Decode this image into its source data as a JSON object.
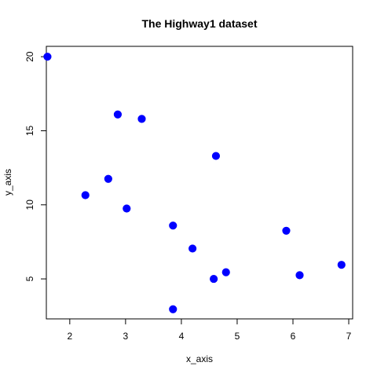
{
  "chart_data": {
    "type": "scatter",
    "title": "The Highway1 dataset",
    "xlabel": "x_axis",
    "ylabel": "y_axis",
    "xlim": [
      1.58,
      7.07
    ],
    "ylim": [
      2.3,
      20.7
    ],
    "xticks": [
      2,
      3,
      4,
      5,
      6,
      7
    ],
    "yticks": [
      5,
      10,
      15,
      20
    ],
    "grid": false,
    "point_color": "#0000ff",
    "points": [
      {
        "x": 1.6,
        "y": 20.0
      },
      {
        "x": 2.28,
        "y": 10.65
      },
      {
        "x": 2.69,
        "y": 11.75
      },
      {
        "x": 2.86,
        "y": 16.1
      },
      {
        "x": 3.02,
        "y": 9.75
      },
      {
        "x": 3.29,
        "y": 15.8
      },
      {
        "x": 3.85,
        "y": 8.6
      },
      {
        "x": 3.85,
        "y": 2.95
      },
      {
        "x": 4.2,
        "y": 7.05
      },
      {
        "x": 4.58,
        "y": 5.0
      },
      {
        "x": 4.62,
        "y": 13.3
      },
      {
        "x": 4.8,
        "y": 5.45
      },
      {
        "x": 5.88,
        "y": 8.25
      },
      {
        "x": 6.12,
        "y": 5.25
      },
      {
        "x": 6.87,
        "y": 5.95
      }
    ]
  }
}
